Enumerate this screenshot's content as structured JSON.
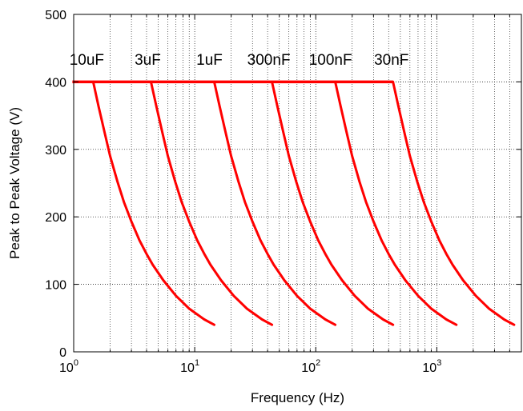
{
  "chart_data": {
    "type": "line",
    "title": "",
    "xlabel": "Frequency (Hz)",
    "ylabel": "Peak to Peak Voltage (V)",
    "x_scale": "log",
    "xlim": [
      1,
      5000
    ],
    "ylim": [
      0,
      500
    ],
    "grid": true,
    "x_tick_labels": [
      {
        "value": 1,
        "base": "10",
        "exp": "0"
      },
      {
        "value": 10,
        "base": "10",
        "exp": "1"
      },
      {
        "value": 100,
        "base": "10",
        "exp": "2"
      },
      {
        "value": 1000,
        "base": "10",
        "exp": "3"
      }
    ],
    "y_ticks": [
      0,
      100,
      200,
      300,
      400,
      500
    ],
    "line_color": "#ff0000",
    "plateau_voltage": 400,
    "series": [
      {
        "name": "10uF",
        "x": [
          1.45,
          1.6,
          1.8,
          2.0,
          2.3,
          2.6,
          3.0,
          3.5,
          4.0,
          4.5,
          5.5,
          7.0,
          9.0,
          12.0,
          14.5
        ],
        "y": [
          400,
          365,
          325,
          290,
          252,
          222,
          193,
          165,
          145,
          129,
          106,
          83,
          64,
          48,
          40
        ]
      },
      {
        "name": "3uF",
        "x": [
          4.35,
          4.8,
          5.4,
          6.0,
          6.9,
          7.8,
          9.0,
          10.5,
          12.0,
          13.5,
          16.5,
          21.0,
          27.0,
          36.0,
          43.5
        ],
        "y": [
          400,
          365,
          325,
          290,
          252,
          222,
          193,
          165,
          145,
          129,
          106,
          83,
          64,
          48,
          40
        ]
      },
      {
        "name": "1uF",
        "x": [
          14.5,
          16.0,
          18.0,
          20.0,
          23.0,
          26.0,
          30.0,
          35.0,
          40.0,
          45.0,
          55.0,
          70.0,
          90.0,
          120.0,
          145.0
        ],
        "y": [
          400,
          365,
          325,
          290,
          252,
          222,
          193,
          165,
          145,
          129,
          106,
          83,
          64,
          48,
          40
        ]
      },
      {
        "name": "300nF",
        "x": [
          43.5,
          48.0,
          54.0,
          60.0,
          69.0,
          78.0,
          90.0,
          105.0,
          120.0,
          135.0,
          165.0,
          210.0,
          270.0,
          360.0,
          435.0
        ],
        "y": [
          400,
          365,
          325,
          290,
          252,
          222,
          193,
          165,
          145,
          129,
          106,
          83,
          64,
          48,
          40
        ]
      },
      {
        "name": "100nF",
        "x": [
          145,
          160,
          180,
          200,
          230,
          260,
          300,
          350,
          400,
          450,
          550,
          700,
          900,
          1200,
          1450
        ],
        "y": [
          400,
          365,
          325,
          290,
          252,
          222,
          193,
          165,
          145,
          129,
          106,
          83,
          64,
          48,
          40
        ]
      },
      {
        "name": "30nF",
        "x": [
          435,
          480,
          540,
          600,
          690,
          780,
          900,
          1050,
          1200,
          1350,
          1650,
          2100,
          2700,
          3600,
          4350
        ],
        "y": [
          400,
          365,
          325,
          290,
          252,
          222,
          193,
          165,
          145,
          129,
          106,
          83,
          64,
          48,
          40
        ]
      }
    ]
  }
}
